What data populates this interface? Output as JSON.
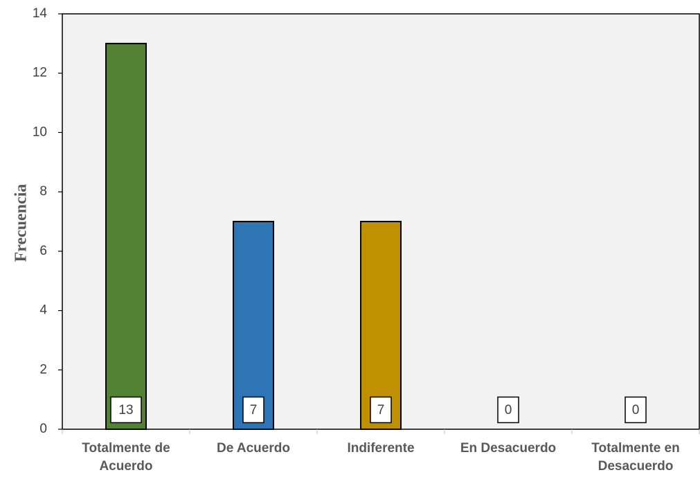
{
  "chart_data": {
    "type": "bar",
    "title": "",
    "xlabel": "",
    "ylabel": "Frecuencia",
    "categories": [
      [
        "Totalmente de",
        "Acuerdo"
      ],
      [
        "De Acuerdo"
      ],
      [
        "Indiferente"
      ],
      [
        "En Desacuerdo"
      ],
      [
        "Totalmente en",
        "Desacuerdo"
      ]
    ],
    "values": [
      13,
      7,
      7,
      0,
      0
    ],
    "colors": [
      "#548235",
      "#2e75b6",
      "#bf9000",
      "#a5a5a5",
      "#7f7f7f"
    ],
    "ylim": [
      0,
      14
    ],
    "yticks": [
      0,
      2,
      4,
      6,
      8,
      10,
      12,
      14
    ],
    "grid": false,
    "legend": "none",
    "plot_background": "#f2f2f2",
    "data_labels": true
  }
}
